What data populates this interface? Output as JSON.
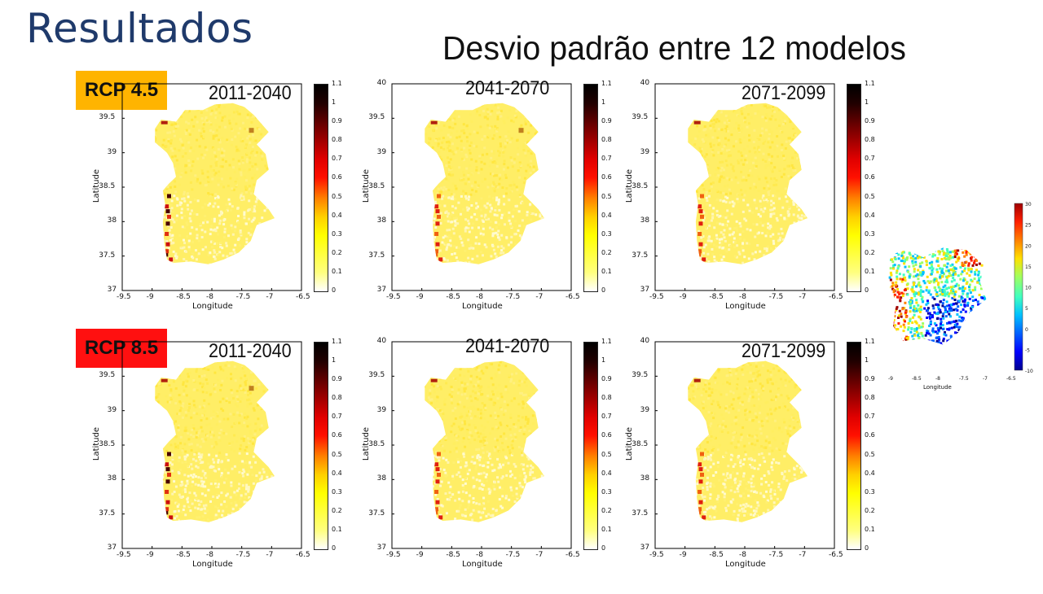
{
  "slide": {
    "title": "Resultados",
    "subtitle": "Desvio padrão entre 12 modelos"
  },
  "badges": [
    {
      "label": "RCP 4.5",
      "color": "#FFB400"
    },
    {
      "label": "RCP 8.5",
      "color": "#FF1010"
    }
  ],
  "panels": [
    {
      "scenario": "RCP 4.5",
      "period": "2011-2040",
      "title_style": "top-right"
    },
    {
      "scenario": "RCP 4.5",
      "period": "2041-2070",
      "title_style": "center"
    },
    {
      "scenario": "RCP 4.5",
      "period": "2071-2099",
      "title_style": "top-right"
    },
    {
      "scenario": "RCP 8.5",
      "period": "2011-2040",
      "title_style": "top-right"
    },
    {
      "scenario": "RCP 8.5",
      "period": "2041-2070",
      "title_style": "center"
    },
    {
      "scenario": "RCP 8.5",
      "period": "2071-2099",
      "title_style": "top-right"
    }
  ],
  "map_axes": {
    "xlabel": "Longitude",
    "ylabel": "Latitude",
    "xticks": [
      "-9.5",
      "-9",
      "-8.5",
      "-8",
      "-7.5",
      "-7",
      "-6.5"
    ],
    "yticks": [
      "37",
      "37.5",
      "38",
      "38.5",
      "39",
      "39.5",
      "40"
    ],
    "colorbar_ticks": [
      "0",
      "0.1",
      "0.2",
      "0.3",
      "0.4",
      "0.5",
      "0.6",
      "0.7",
      "0.8",
      "0.9",
      "1",
      "1.1"
    ],
    "colormap": "hot (reversed): white → yellow → red → black"
  },
  "inset": {
    "xlabel": "Longitude",
    "xticks": [
      "-9",
      "-8.5",
      "-8",
      "-7.5",
      "-7",
      "-6.5"
    ],
    "colorbar_ticks": [
      "-10",
      "-5",
      "0",
      "5",
      "10",
      "15",
      "20",
      "25",
      "30"
    ],
    "colormap": "jet"
  }
}
